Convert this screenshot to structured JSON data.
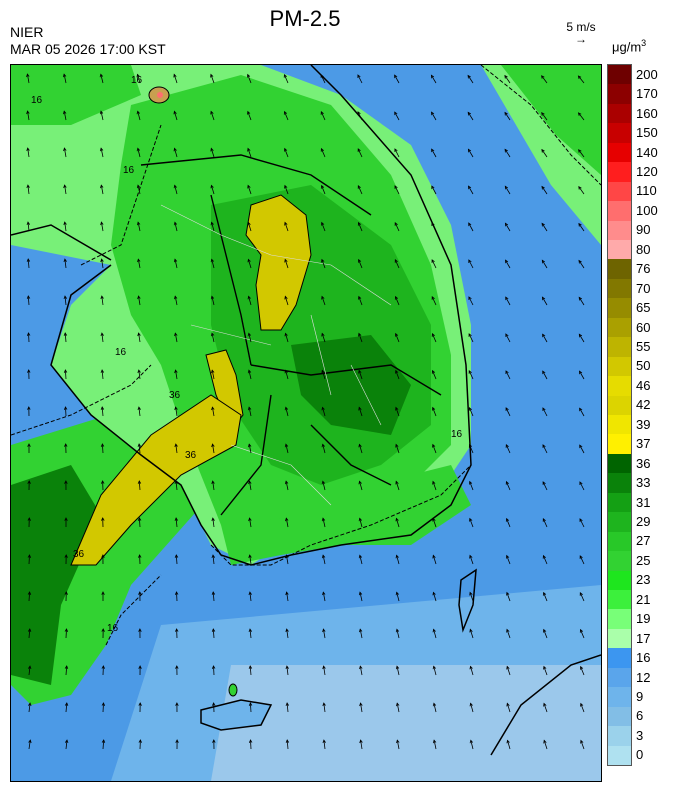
{
  "header": {
    "title": "PM-2.5",
    "org": "NIER",
    "datetime": "MAR 05 2026 17:00 KST",
    "wind_scale_label": "5 m/s",
    "wind_scale_arrow": "→",
    "unit_prefix": "μg/m",
    "unit_exp": "3"
  },
  "legend": {
    "labels": [
      "200",
      "170",
      "160",
      "150",
      "140",
      "120",
      "110",
      "100",
      "90",
      "80",
      "76",
      "70",
      "65",
      "60",
      "55",
      "50",
      "46",
      "42",
      "39",
      "37",
      "36",
      "33",
      "31",
      "29",
      "27",
      "25",
      "23",
      "21",
      "19",
      "17",
      "16",
      "12",
      "9",
      "6",
      "3",
      "0"
    ],
    "colors": [
      "#6e0000",
      "#8c0000",
      "#aa0000",
      "#c80000",
      "#e60000",
      "#ff1e1e",
      "#ff4646",
      "#ff6e6e",
      "#ff8c8c",
      "#ffaaaa",
      "#6e6400",
      "#827800",
      "#968c00",
      "#aaa000",
      "#beb400",
      "#d2c800",
      "#e6dc00",
      "#dcd400",
      "#f0e600",
      "#fff000",
      "#006400",
      "#0a820a",
      "#14a014",
      "#1eb41e",
      "#28c828",
      "#32d232",
      "#1ee61e",
      "#3cf03c",
      "#78ff78",
      "#aaffaa",
      "#3c96f0",
      "#5aa5eb",
      "#6eb4eb",
      "#82bee6",
      "#9bd2eb",
      "#afe1f0"
    ]
  },
  "map": {
    "contour_labels": [
      "16",
      "36",
      "36",
      "36",
      "16",
      "16",
      "16",
      "16",
      "16"
    ],
    "pm_colors": {
      "sea_blue": "#4c9ae6",
      "light_blue": "#6eb4eb",
      "very_light_blue": "#9bc8eb",
      "green_light": "#78f078",
      "green": "#32d232",
      "green_mid": "#1eb41e",
      "green_dark": "#0a820a",
      "yellow": "#d2c800",
      "red": "#ff6e6e"
    }
  }
}
